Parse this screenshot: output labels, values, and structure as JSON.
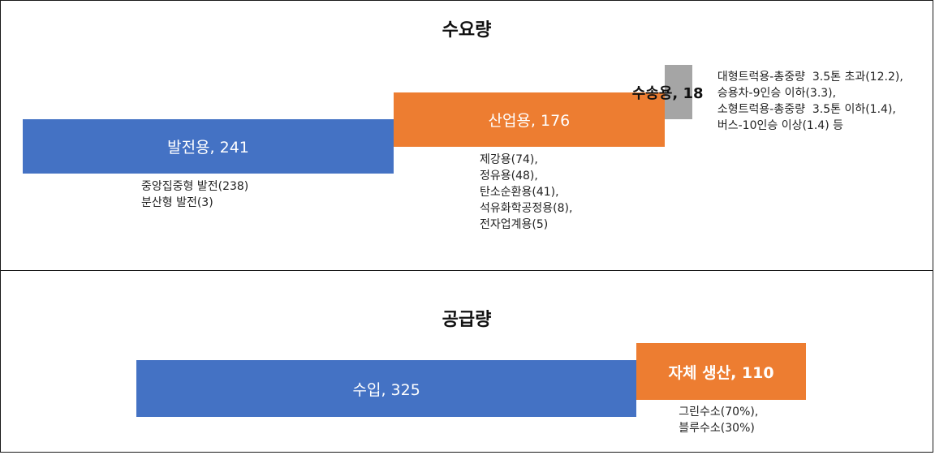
{
  "chart_data": [
    {
      "type": "bar",
      "title": "수요량",
      "colors": [
        "#4472C4",
        "#ED7D31",
        "#A5A5A5"
      ],
      "series": [
        {
          "key": "power",
          "label": "발전용, 241",
          "value": 241,
          "color": "#4472C4",
          "notes": [
            "중앙집중형 발전(238)",
            "분산형 발전(3)"
          ]
        },
        {
          "key": "industry",
          "label": "산업용, 176",
          "value": 176,
          "color": "#ED7D31",
          "notes": [
            "제강용(74),",
            "정유용(48),",
            "탄소순환용(41),",
            "석유화학공정용(8),",
            "전자업계용(5)"
          ]
        },
        {
          "key": "transport",
          "label": "수송용, 18",
          "value": 18,
          "color": "#A5A5A5",
          "notes": [
            "대형트럭용-총중량  3.5톤 초과(12.2),",
            "승용차-9인승 이하(3.3),",
            "소형트럭용-총중량  3.5톤 이하(1.4),",
            "버스-10인승 이상(1.4) 등"
          ]
        }
      ]
    },
    {
      "type": "bar",
      "title": "공급량",
      "colors": [
        "#4472C4",
        "#ED7D31"
      ],
      "series": [
        {
          "key": "import",
          "label": "수입, 325",
          "value": 325,
          "color": "#4472C4",
          "notes": []
        },
        {
          "key": "domestic",
          "label": "자체 생산, 110",
          "value": 110,
          "color": "#ED7D31",
          "notes": [
            "그린수소(70%),",
            "블루수소(30%)"
          ]
        }
      ]
    }
  ]
}
